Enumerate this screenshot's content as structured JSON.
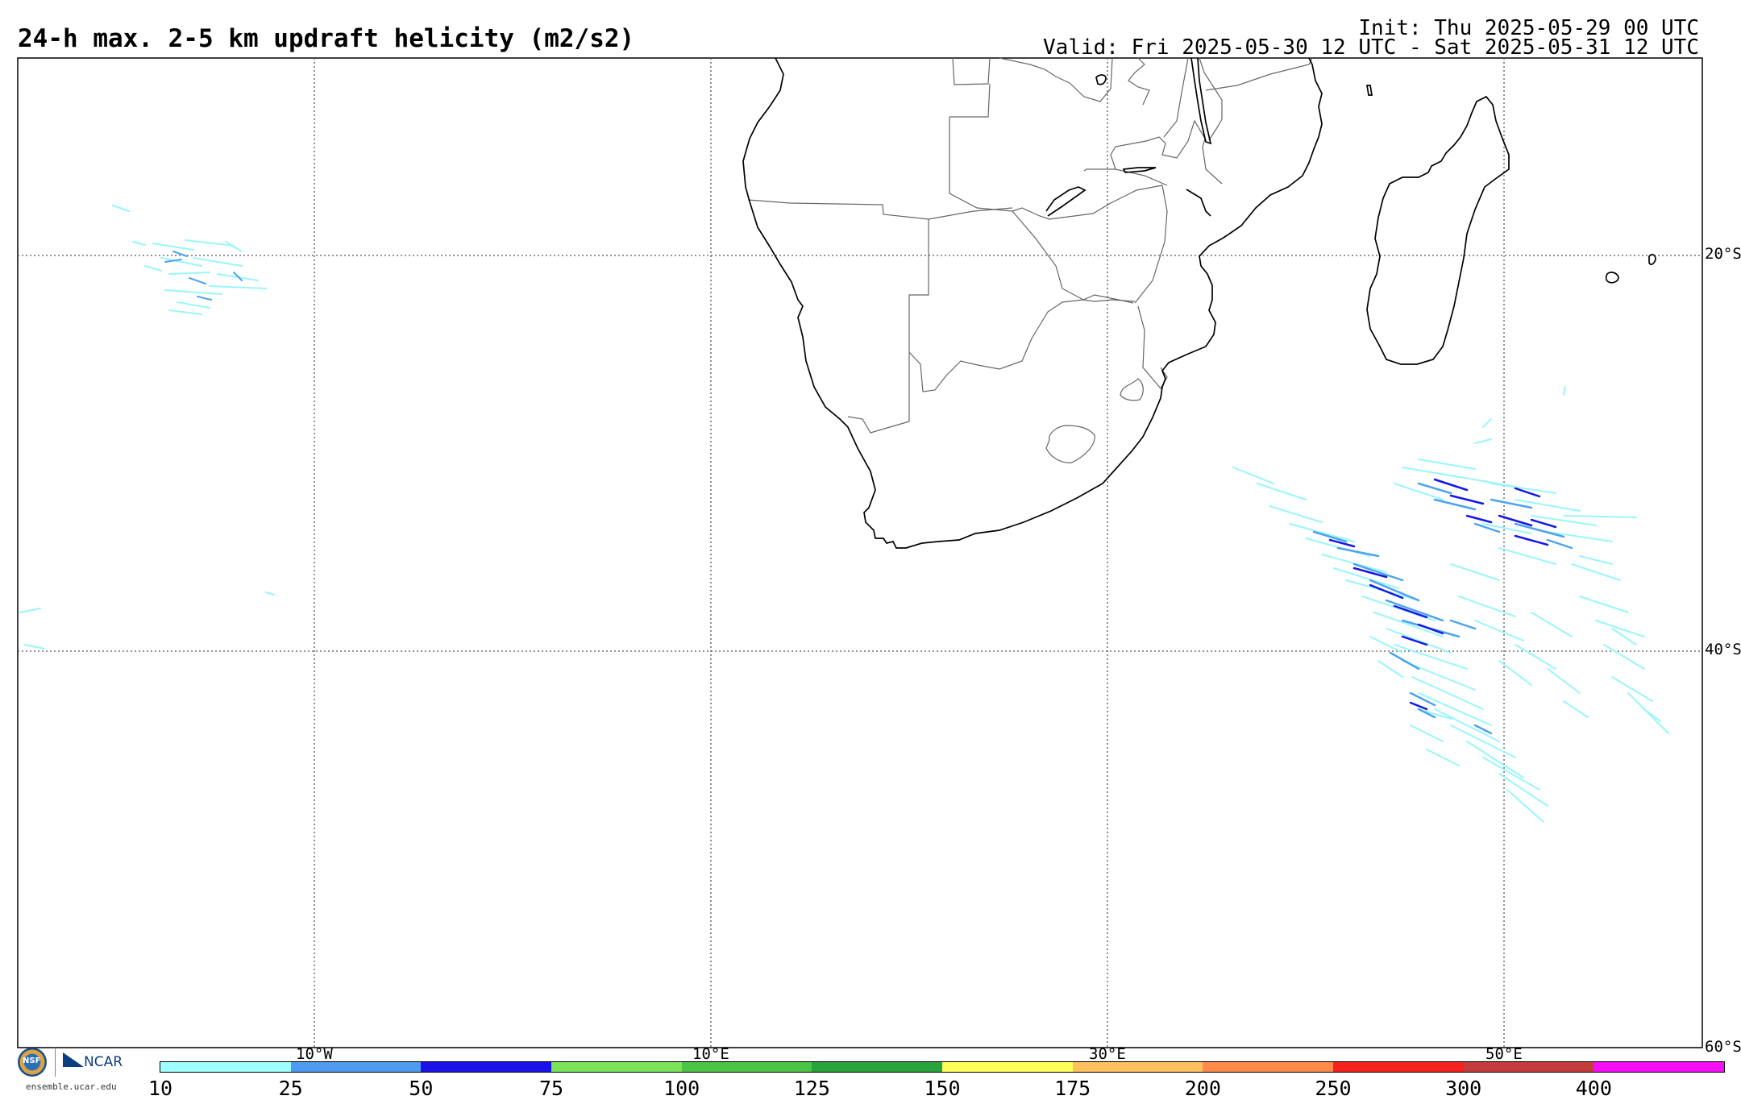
{
  "header": {
    "title": "24-h max. 2-5 km updraft helicity (m2/s2)",
    "init": "Init: Thu 2025-05-29 00 UTC",
    "valid": "Valid: Fri 2025-05-30 12 UTC - Sat 2025-05-31 12 UTC"
  },
  "map": {
    "lat_labels": [
      "20°S",
      "40°S",
      "60°S"
    ],
    "lon_labels": [
      "10°W",
      "10°E",
      "30°E",
      "50°E"
    ],
    "colors": {
      "coast": "#000000",
      "border": "#666666",
      "grid": "#555555",
      "uh_light": "#99f6f8",
      "uh_medium": "#4da3f0",
      "uh_dark": "#1418e6"
    }
  },
  "logos": {
    "nsf": "NSF",
    "ncar": "NCAR",
    "url": "ensemble.ucar.edu"
  },
  "colorbar": {
    "ticks": [
      "10",
      "25",
      "50",
      "75",
      "100",
      "125",
      "150",
      "175",
      "200",
      "250",
      "300",
      "400"
    ],
    "colors": [
      "#a0ffff",
      "#4f9bf0",
      "#1a12e8",
      "#7be35a",
      "#4cc445",
      "#2aa33a",
      "#ffff5a",
      "#ffc060",
      "#ff8a4a",
      "#f5221e",
      "#c43c3c",
      "#f50ff5"
    ]
  }
}
